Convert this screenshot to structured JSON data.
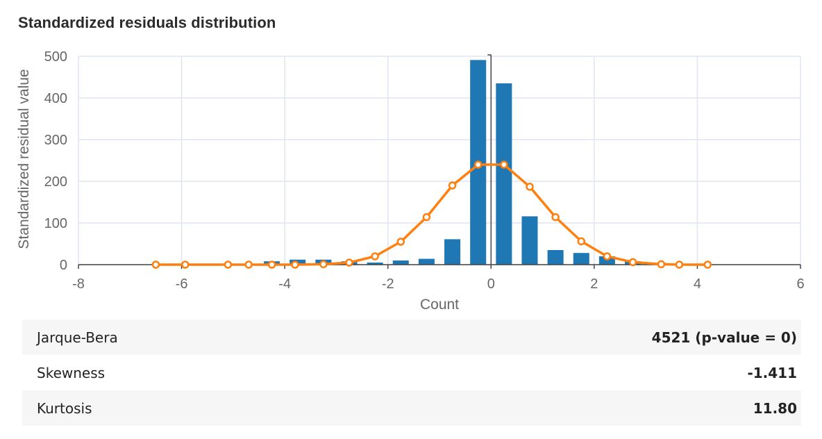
{
  "title": "Standardized residuals distribution",
  "chart_data": {
    "type": "bar",
    "xlabel": "Count",
    "ylabel": "Standardized residual value",
    "xlim": [
      -8,
      6
    ],
    "ylim": [
      0,
      500
    ],
    "x_ticks": [
      "-8",
      "-6",
      "-4",
      "-2",
      "0",
      "2",
      "4",
      "6"
    ],
    "y_ticks": [
      "0",
      "100",
      "200",
      "300",
      "400",
      "500"
    ],
    "grid": true,
    "colors": {
      "bars": "#1f77b4",
      "curve": "#ff7f0e",
      "grid": "#dfe5f0"
    },
    "bars": {
      "x": [
        -4.25,
        -3.75,
        -3.25,
        -2.75,
        -2.25,
        -1.75,
        -1.25,
        -0.75,
        -0.25,
        0.25,
        0.75,
        1.25,
        1.75,
        2.25,
        2.75,
        3.25
      ],
      "values": [
        8,
        12,
        12,
        8,
        5,
        10,
        14,
        61,
        491,
        435,
        116,
        35,
        28,
        20,
        8,
        4
      ]
    },
    "curve": {
      "x": [
        -6.5,
        -5.93,
        -5.1,
        -4.7,
        -4.25,
        -3.8,
        -3.25,
        -2.75,
        -2.25,
        -1.75,
        -1.25,
        -0.75,
        -0.25,
        0.25,
        0.75,
        1.25,
        1.75,
        2.25,
        2.75,
        3.3,
        3.65,
        4.2
      ],
      "values": [
        0,
        0,
        0,
        0,
        0,
        0,
        1,
        5,
        20,
        55,
        114,
        190,
        240,
        240,
        187,
        114,
        56,
        20,
        6,
        1,
        0,
        0
      ]
    }
  },
  "stats": [
    {
      "label": "Jarque-Bera",
      "value": "4521 (p-value = 0)"
    },
    {
      "label": "Skewness",
      "value": "-1.411"
    },
    {
      "label": "Kurtosis",
      "value": "11.80"
    }
  ]
}
